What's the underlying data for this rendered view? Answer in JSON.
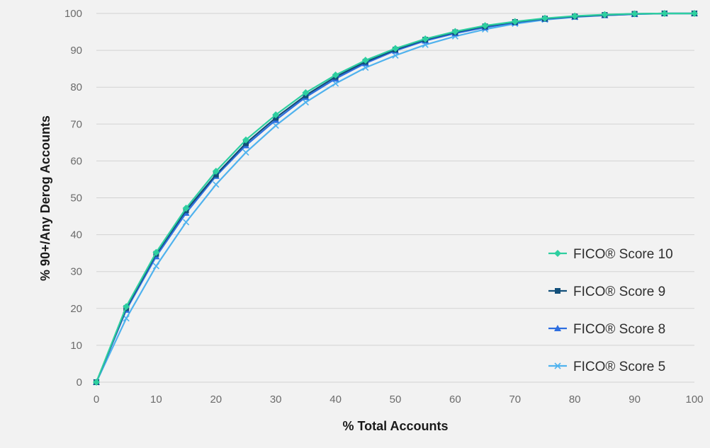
{
  "chart_data": {
    "type": "line",
    "title": "",
    "xlabel": "% Total Accounts",
    "ylabel": "% 90+/Any Derog Accounts",
    "xlim": [
      0,
      100
    ],
    "ylim": [
      0,
      100
    ],
    "xticks": [
      "0",
      "10",
      "20",
      "30",
      "40",
      "50",
      "60",
      "70",
      "80",
      "90",
      "100"
    ],
    "yticks": [
      "0",
      "10",
      "20",
      "30",
      "40",
      "50",
      "60",
      "70",
      "80",
      "90",
      "100"
    ],
    "grid": "horizontal",
    "legend": "bottom-right",
    "series": [
      {
        "name": "FICO® Score 10",
        "color": "#2ecfa0",
        "marker": "diamond",
        "x": [
          0,
          5,
          10,
          15,
          20,
          25,
          30,
          35,
          40,
          45,
          50,
          55,
          60,
          65,
          70,
          75,
          80,
          85,
          90,
          95,
          100
        ],
        "y": [
          0,
          20.5,
          35.2,
          47.2,
          57.2,
          65.7,
          72.5,
          78.5,
          83.3,
          87.3,
          90.5,
          93.1,
          95.1,
          96.7,
          97.8,
          98.7,
          99.3,
          99.7,
          99.9,
          100,
          100
        ]
      },
      {
        "name": "FICO® Score 9",
        "color": "#124f7a",
        "marker": "square",
        "x": [
          0,
          5,
          10,
          15,
          20,
          25,
          30,
          35,
          40,
          45,
          50,
          55,
          60,
          65,
          70,
          75,
          80,
          85,
          90,
          95,
          100
        ],
        "y": [
          0,
          20.1,
          34.8,
          46.6,
          56.3,
          64.8,
          71.7,
          77.8,
          82.8,
          86.9,
          90.2,
          92.9,
          94.9,
          96.5,
          97.7,
          98.6,
          99.2,
          99.6,
          99.9,
          100,
          100
        ]
      },
      {
        "name": "FICO® Score 8",
        "color": "#2d6ee0",
        "marker": "triangle",
        "x": [
          0,
          5,
          10,
          15,
          20,
          25,
          30,
          35,
          40,
          45,
          50,
          55,
          60,
          65,
          70,
          75,
          80,
          85,
          90,
          95,
          100
        ],
        "y": [
          0,
          19.6,
          34.1,
          45.9,
          55.9,
          64.2,
          71.1,
          77.3,
          82.3,
          86.5,
          89.9,
          92.6,
          94.6,
          96.2,
          97.5,
          98.5,
          99.1,
          99.5,
          99.8,
          100,
          100
        ]
      },
      {
        "name": "FICO® Score 5",
        "color": "#4fb2ee",
        "marker": "x",
        "x": [
          0,
          5,
          10,
          15,
          20,
          25,
          30,
          35,
          40,
          45,
          50,
          55,
          60,
          65,
          70,
          75,
          80,
          85,
          90,
          95,
          100
        ],
        "y": [
          0,
          17.3,
          31.5,
          43.4,
          53.6,
          62.3,
          69.6,
          75.9,
          81.0,
          85.3,
          88.6,
          91.5,
          93.8,
          95.7,
          97.2,
          98.3,
          99.0,
          99.5,
          99.8,
          100,
          100
        ]
      }
    ]
  }
}
